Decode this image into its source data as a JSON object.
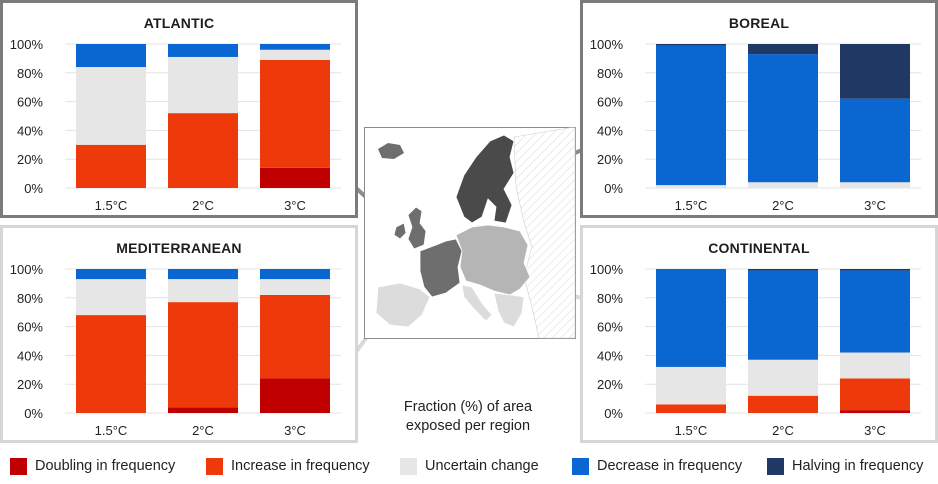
{
  "caption": {
    "line1": "Fraction (%) of area",
    "line2": "exposed per region"
  },
  "legend": [
    {
      "key": "doubling",
      "label": "Doubling in frequency",
      "color": "#c00000"
    },
    {
      "key": "increase",
      "label": "Increase in frequency",
      "color": "#ee3a0b"
    },
    {
      "key": "uncertain",
      "label": "Uncertain change",
      "color": "#e6e6e6"
    },
    {
      "key": "decrease",
      "label": "Decrease in frequency",
      "color": "#0a66d0"
    },
    {
      "key": "halving",
      "label": "Halving in frequency",
      "color": "#1f3864"
    }
  ],
  "chart_data": [
    {
      "type": "bar",
      "stacked": true,
      "title": "ATLANTIC",
      "categories": [
        "1.5°C",
        "2°C",
        "3°C"
      ],
      "y_ticks": [
        "0%",
        "20%",
        "40%",
        "60%",
        "80%",
        "100%"
      ],
      "ylim": [
        0,
        100
      ],
      "series": [
        {
          "name": "Doubling in frequency",
          "values": [
            0,
            0,
            14
          ]
        },
        {
          "name": "Increase in frequency",
          "values": [
            30,
            52,
            75
          ]
        },
        {
          "name": "Uncertain change",
          "values": [
            54,
            39,
            7
          ]
        },
        {
          "name": "Decrease in frequency",
          "values": [
            16,
            9,
            4
          ]
        },
        {
          "name": "Halving in frequency",
          "values": [
            0,
            0,
            0
          ]
        }
      ]
    },
    {
      "type": "bar",
      "stacked": true,
      "title": "BOREAL",
      "categories": [
        "1.5°C",
        "2°C",
        "3°C"
      ],
      "y_ticks": [
        "0%",
        "20%",
        "40%",
        "60%",
        "80%",
        "100%"
      ],
      "ylim": [
        0,
        100
      ],
      "series": [
        {
          "name": "Doubling in frequency",
          "values": [
            0,
            0,
            0
          ]
        },
        {
          "name": "Increase in frequency",
          "values": [
            0,
            0,
            0
          ]
        },
        {
          "name": "Uncertain change",
          "values": [
            2,
            4,
            4
          ]
        },
        {
          "name": "Decrease in frequency",
          "values": [
            97,
            89,
            58
          ]
        },
        {
          "name": "Halving in frequency",
          "values": [
            1,
            7,
            38
          ]
        }
      ]
    },
    {
      "type": "bar",
      "stacked": true,
      "title": "MEDITERRANEAN",
      "categories": [
        "1.5°C",
        "2°C",
        "3°C"
      ],
      "y_ticks": [
        "0%",
        "20%",
        "40%",
        "60%",
        "80%",
        "100%"
      ],
      "ylim": [
        0,
        100
      ],
      "series": [
        {
          "name": "Doubling in frequency",
          "values": [
            0,
            4,
            24
          ]
        },
        {
          "name": "Increase in frequency",
          "values": [
            68,
            73,
            58
          ]
        },
        {
          "name": "Uncertain change",
          "values": [
            25,
            16,
            11
          ]
        },
        {
          "name": "Decrease in frequency",
          "values": [
            7,
            7,
            7
          ]
        },
        {
          "name": "Halving in frequency",
          "values": [
            0,
            0,
            0
          ]
        }
      ]
    },
    {
      "type": "bar",
      "stacked": true,
      "title": "CONTINENTAL",
      "categories": [
        "1.5°C",
        "2°C",
        "3°C"
      ],
      "y_ticks": [
        "0%",
        "20%",
        "40%",
        "60%",
        "80%",
        "100%"
      ],
      "ylim": [
        0,
        100
      ],
      "series": [
        {
          "name": "Doubling in frequency",
          "values": [
            0,
            0,
            2
          ]
        },
        {
          "name": "Increase in frequency",
          "values": [
            6,
            12,
            22
          ]
        },
        {
          "name": "Uncertain change",
          "values": [
            26,
            25,
            18
          ]
        },
        {
          "name": "Decrease in frequency",
          "values": [
            68,
            62,
            57
          ]
        },
        {
          "name": "Halving in frequency",
          "values": [
            0,
            1,
            1
          ]
        }
      ]
    }
  ]
}
